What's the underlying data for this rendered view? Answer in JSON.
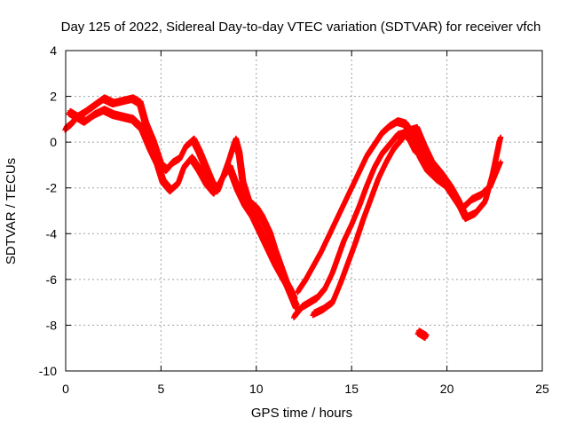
{
  "chart_data": {
    "type": "scatter",
    "title": "Day 125 of 2022, Sidereal Day-to-day VTEC variation (SDTVAR) for receiver vfch",
    "xlabel": "GPS time / hours",
    "ylabel": "SDTVAR / TECUs",
    "xlim": [
      0,
      25
    ],
    "ylim": [
      -10,
      4
    ],
    "xticks": [
      0,
      5,
      10,
      15,
      20,
      25
    ],
    "xtick_labels": [
      "0",
      "5",
      "10",
      "15",
      "20",
      "25"
    ],
    "yticks": [
      -10,
      -8,
      -6,
      -4,
      -2,
      0,
      2,
      4
    ],
    "ytick_labels": [
      "-10",
      "-8",
      "-6",
      "-4",
      "-2",
      "0",
      "2",
      "4"
    ],
    "grid": true,
    "marker": "plus",
    "color": "#ff0000",
    "series": [
      {
        "name": "track-1",
        "x": [
          0.0,
          0.3,
          0.6,
          1.0,
          1.5,
          2.0,
          2.5,
          3.0,
          3.5,
          3.9,
          4.2,
          4.6,
          5.0,
          5.3,
          5.6,
          6.0,
          6.3,
          6.7,
          7.0,
          7.3,
          7.7,
          8.0,
          8.3,
          8.6,
          8.9,
          9.1,
          9.3,
          9.6,
          10.0,
          10.3,
          10.7,
          11.0,
          11.3,
          11.6,
          11.9,
          12.1
        ],
        "y": [
          0.6,
          0.8,
          1.1,
          1.3,
          1.6,
          1.9,
          1.7,
          1.8,
          1.9,
          1.7,
          0.8,
          0.0,
          -1.0,
          -1.2,
          -0.9,
          -0.7,
          -0.2,
          0.1,
          -0.4,
          -1.0,
          -1.8,
          -2.1,
          -1.4,
          -0.7,
          0.1,
          -0.5,
          -1.8,
          -2.6,
          -2.9,
          -3.3,
          -4.0,
          -4.8,
          -5.5,
          -6.2,
          -6.8,
          -7.2
        ]
      },
      {
        "name": "track-2",
        "x": [
          0.2,
          0.6,
          1.0,
          1.5,
          2.0,
          2.5,
          3.0,
          3.5,
          4.0,
          4.4,
          4.8,
          5.1,
          5.5,
          5.9,
          6.2,
          6.6,
          7.0,
          7.4,
          7.8,
          8.2,
          8.6,
          9.0,
          9.4,
          9.8,
          10.2,
          10.6,
          11.0,
          11.4,
          11.8,
          12.0
        ],
        "y": [
          1.3,
          1.1,
          0.9,
          1.2,
          1.4,
          1.2,
          1.1,
          1.0,
          0.6,
          -0.2,
          -0.9,
          -1.7,
          -2.1,
          -1.8,
          -1.1,
          -0.7,
          -1.2,
          -1.8,
          -2.2,
          -1.6,
          -1.1,
          -2.0,
          -2.7,
          -3.2,
          -3.9,
          -4.6,
          -5.3,
          -5.9,
          -6.5,
          -6.9
        ]
      },
      {
        "name": "track-3",
        "x": [
          12.0,
          12.4,
          12.8,
          13.2,
          13.6,
          14.0,
          14.3,
          14.6,
          15.0,
          15.4,
          15.8,
          16.2,
          16.6,
          17.0,
          17.4,
          17.8,
          18.1,
          18.4
        ],
        "y": [
          -7.6,
          -7.2,
          -7.0,
          -6.8,
          -6.4,
          -5.7,
          -5.0,
          -4.3,
          -3.6,
          -2.8,
          -1.9,
          -1.1,
          -0.5,
          -0.1,
          0.3,
          0.4,
          0.1,
          -0.4
        ]
      },
      {
        "name": "track-4",
        "x": [
          12.2,
          12.6,
          13.0,
          13.4,
          13.8,
          14.2,
          14.6,
          15.0,
          15.4,
          15.8,
          16.2,
          16.6,
          17.0,
          17.4,
          17.8,
          18.2,
          18.6,
          19.0,
          19.5,
          20.0,
          20.4,
          20.8,
          21.3,
          21.8,
          22.3,
          22.8
        ],
        "y": [
          -6.5,
          -6.0,
          -5.4,
          -4.8,
          -4.1,
          -3.4,
          -2.7,
          -2.0,
          -1.3,
          -0.6,
          -0.1,
          0.4,
          0.7,
          0.9,
          0.8,
          0.3,
          -0.6,
          -1.2,
          -1.6,
          -1.9,
          -2.4,
          -2.9,
          -2.5,
          -2.3,
          -1.9,
          -0.9
        ]
      },
      {
        "name": "track-5",
        "x": [
          13.0,
          13.5,
          14.0,
          14.4,
          14.8,
          15.2,
          15.6,
          16.0,
          16.4,
          16.8,
          17.2,
          17.6,
          18.0,
          18.4,
          18.8,
          19.2,
          19.7,
          20.2,
          20.6,
          21.0,
          21.5,
          22.0,
          22.4,
          22.8
        ],
        "y": [
          -7.5,
          -7.3,
          -7.0,
          -6.2,
          -5.3,
          -4.4,
          -3.4,
          -2.5,
          -1.6,
          -0.9,
          -0.3,
          0.1,
          0.5,
          0.6,
          -0.2,
          -0.9,
          -1.4,
          -2.0,
          -2.6,
          -3.3,
          -3.1,
          -2.6,
          -1.4,
          0.2
        ]
      },
      {
        "name": "track-6",
        "x": [
          18.5,
          18.7,
          18.9
        ],
        "y": [
          -8.3,
          -8.4,
          -8.5
        ]
      }
    ]
  }
}
